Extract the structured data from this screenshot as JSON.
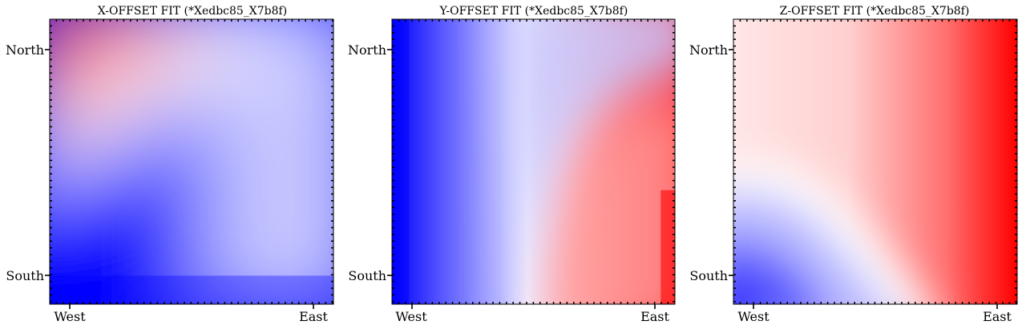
{
  "chart_data": [
    {
      "type": "heatmap",
      "title": "X-OFFSET FIT (*Xedbc85_X7b8f)",
      "x_tick_labels": [
        "West",
        "East"
      ],
      "y_tick_labels": [
        "North",
        "South"
      ],
      "colormap": "bwr",
      "colors": {
        "negative": "#0000ff",
        "zero": "#ffffff",
        "positive": "#ff0000"
      },
      "field": "x_offset"
    },
    {
      "type": "heatmap",
      "title": "Y-OFFSET FIT (*Xedbc85_X7b8f)",
      "x_tick_labels": [
        "West",
        "East"
      ],
      "y_tick_labels": [
        "North",
        "South"
      ],
      "colormap": "bwr",
      "colors": {
        "negative": "#0000ff",
        "zero": "#ffffff",
        "positive": "#ff0000"
      },
      "field": "y_offset"
    },
    {
      "type": "heatmap",
      "title": "Z-OFFSET FIT (*Xedbc85_X7b8f)",
      "x_tick_labels": [
        "West",
        "East"
      ],
      "y_tick_labels": [
        "North",
        "South"
      ],
      "colormap": "bwr",
      "colors": {
        "negative": "#0000ff",
        "zero": "#ffffff",
        "positive": "#ff0000"
      },
      "field": "z_offset"
    }
  ]
}
